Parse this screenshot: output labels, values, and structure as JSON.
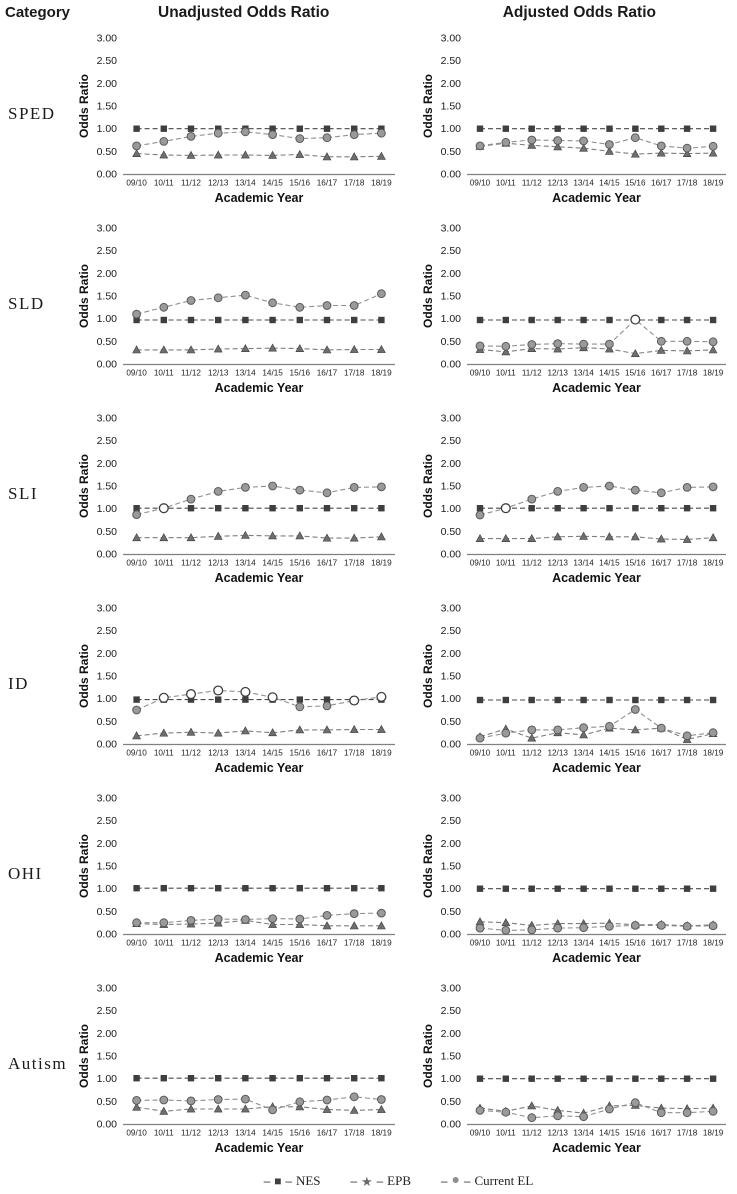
{
  "header": {
    "category": "Category",
    "unadjusted": "Unadjusted Odds Ratio",
    "adjusted": "Adjusted Odds Ratio"
  },
  "chart_data": {
    "type": "line",
    "ylabel": "Odds Ratio",
    "xlabel": "Academic Year",
    "ylim": [
      0,
      3
    ],
    "yticks": [
      3.0,
      2.5,
      2.0,
      1.5,
      1.0,
      0.5,
      0.0
    ],
    "grid": false,
    "line_style": "dashed",
    "categories": [
      "09/10",
      "10/11",
      "11/12",
      "12/13",
      "13/14",
      "14/15",
      "15/16",
      "16/17",
      "17/18",
      "18/19"
    ],
    "legend_position": "bottom",
    "legend": [
      {
        "glyph": "■",
        "label": "NES",
        "marker": "square"
      },
      {
        "glyph": "★",
        "label": "EPB",
        "marker": "triangle"
      },
      {
        "glyph": "●",
        "label": "Current EL",
        "marker": "circle"
      }
    ],
    "colors": {
      "NES": "#3f3f3f",
      "EPB": "#6e6e6e",
      "Current EL": "#9a9a9a",
      "axis": "#808080",
      "nes_line": "#4a4a4a",
      "epb_line": "#7d7d7d",
      "el_line": "#8f8f8f"
    },
    "rows": [
      {
        "category": "SPED",
        "unadjusted": {
          "NES": [
            1.0,
            1.0,
            1.0,
            1.0,
            1.0,
            1.0,
            1.0,
            1.0,
            1.0,
            1.0
          ],
          "EPB": [
            0.45,
            0.42,
            0.41,
            0.42,
            0.42,
            0.41,
            0.43,
            0.38,
            0.38,
            0.39
          ],
          "Current EL": [
            0.62,
            0.72,
            0.83,
            0.9,
            0.93,
            0.87,
            0.78,
            0.8,
            0.87,
            0.9
          ],
          "open": []
        },
        "adjusted": {
          "NES": [
            1.0,
            1.0,
            1.0,
            1.0,
            1.0,
            1.0,
            1.0,
            1.0,
            1.0,
            1.0
          ],
          "EPB": [
            0.61,
            0.68,
            0.63,
            0.6,
            0.57,
            0.5,
            0.44,
            0.46,
            0.45,
            0.46
          ],
          "Current EL": [
            0.62,
            0.7,
            0.75,
            0.74,
            0.73,
            0.65,
            0.8,
            0.62,
            0.57,
            0.61
          ],
          "open": []
        }
      },
      {
        "category": "SLD",
        "unadjusted": {
          "NES": [
            0.97,
            0.97,
            0.97,
            0.97,
            0.97,
            0.97,
            0.97,
            0.97,
            0.97,
            0.97
          ],
          "EPB": [
            0.31,
            0.31,
            0.31,
            0.33,
            0.34,
            0.35,
            0.34,
            0.31,
            0.32,
            0.32
          ],
          "Current EL": [
            1.1,
            1.25,
            1.4,
            1.46,
            1.52,
            1.35,
            1.25,
            1.29,
            1.29,
            1.55
          ],
          "open": []
        },
        "adjusted": {
          "NES": [
            0.97,
            0.97,
            0.97,
            0.97,
            0.97,
            0.97,
            0.97,
            0.97,
            0.97,
            0.97
          ],
          "EPB": [
            0.32,
            0.27,
            0.34,
            0.33,
            0.36,
            0.33,
            0.23,
            0.3,
            0.29,
            0.31
          ],
          "Current EL": [
            0.4,
            0.39,
            0.43,
            0.45,
            0.44,
            0.44,
            0.98,
            0.5,
            0.5,
            0.49
          ],
          "open": [
            6
          ]
        }
      },
      {
        "category": "SLI",
        "unadjusted": {
          "NES": [
            1.01,
            1.01,
            1.01,
            1.01,
            1.01,
            1.01,
            1.01,
            1.01,
            1.01,
            1.01
          ],
          "EPB": [
            0.36,
            0.36,
            0.36,
            0.39,
            0.41,
            0.4,
            0.4,
            0.35,
            0.35,
            0.38
          ],
          "Current EL": [
            0.87,
            1.01,
            1.21,
            1.38,
            1.47,
            1.5,
            1.41,
            1.35,
            1.47,
            1.48
          ],
          "open": [
            1
          ]
        },
        "adjusted": {
          "NES": [
            1.01,
            1.01,
            1.01,
            1.01,
            1.01,
            1.01,
            1.01,
            1.01,
            1.01,
            1.01
          ],
          "EPB": [
            0.34,
            0.34,
            0.34,
            0.38,
            0.39,
            0.38,
            0.38,
            0.33,
            0.32,
            0.36
          ],
          "Current EL": [
            0.86,
            1.01,
            1.21,
            1.38,
            1.47,
            1.5,
            1.41,
            1.35,
            1.47,
            1.48
          ],
          "open": [
            1
          ]
        }
      },
      {
        "category": "ID",
        "unadjusted": {
          "NES": [
            0.98,
            0.98,
            0.98,
            0.98,
            0.98,
            0.98,
            0.98,
            0.98,
            0.98,
            0.98
          ],
          "EPB": [
            0.18,
            0.24,
            0.26,
            0.24,
            0.29,
            0.25,
            0.31,
            0.31,
            0.32,
            0.32
          ],
          "Current EL": [
            0.75,
            1.02,
            1.1,
            1.18,
            1.15,
            1.03,
            0.82,
            0.84,
            0.96,
            1.04
          ],
          "open": [
            1,
            2,
            3,
            4,
            5,
            8,
            9
          ]
        },
        "adjusted": {
          "NES": [
            0.97,
            0.97,
            0.97,
            0.97,
            0.97,
            0.97,
            0.97,
            0.97,
            0.97,
            0.97
          ],
          "EPB": [
            0.16,
            0.33,
            0.13,
            0.25,
            0.2,
            0.35,
            0.31,
            0.35,
            0.1,
            0.23
          ],
          "Current EL": [
            0.13,
            0.24,
            0.31,
            0.31,
            0.36,
            0.39,
            0.76,
            0.35,
            0.18,
            0.25
          ],
          "open": []
        }
      },
      {
        "category": "OHI",
        "unadjusted": {
          "NES": [
            1.01,
            1.01,
            1.01,
            1.01,
            1.01,
            1.01,
            1.01,
            1.01,
            1.01,
            1.01
          ],
          "EPB": [
            0.23,
            0.21,
            0.22,
            0.24,
            0.3,
            0.21,
            0.21,
            0.18,
            0.18,
            0.18
          ],
          "Current EL": [
            0.25,
            0.25,
            0.3,
            0.33,
            0.32,
            0.34,
            0.33,
            0.41,
            0.45,
            0.46
          ],
          "open": []
        },
        "adjusted": {
          "NES": [
            1.0,
            1.0,
            1.0,
            1.0,
            1.0,
            1.0,
            1.0,
            1.0,
            1.0,
            1.0
          ],
          "EPB": [
            0.27,
            0.25,
            0.19,
            0.23,
            0.23,
            0.24,
            0.2,
            0.21,
            0.18,
            0.2
          ],
          "Current EL": [
            0.13,
            0.08,
            0.09,
            0.13,
            0.14,
            0.17,
            0.19,
            0.19,
            0.17,
            0.18
          ],
          "open": []
        }
      },
      {
        "category": "Autism",
        "unadjusted": {
          "NES": [
            1.01,
            1.01,
            1.01,
            1.01,
            1.01,
            1.01,
            1.01,
            1.01,
            1.01,
            1.01
          ],
          "EPB": [
            0.37,
            0.28,
            0.33,
            0.33,
            0.33,
            0.38,
            0.38,
            0.32,
            0.3,
            0.32
          ],
          "Current EL": [
            0.52,
            0.53,
            0.51,
            0.54,
            0.55,
            0.31,
            0.49,
            0.53,
            0.6,
            0.54
          ],
          "open": []
        },
        "adjusted": {
          "NES": [
            1.0,
            1.0,
            1.0,
            1.0,
            1.0,
            1.0,
            1.0,
            1.0,
            1.0,
            1.0
          ],
          "EPB": [
            0.35,
            0.28,
            0.4,
            0.3,
            0.24,
            0.4,
            0.41,
            0.35,
            0.34,
            0.35
          ],
          "Current EL": [
            0.3,
            0.26,
            0.14,
            0.18,
            0.16,
            0.33,
            0.47,
            0.25,
            0.25,
            0.28
          ],
          "open": []
        }
      }
    ]
  }
}
